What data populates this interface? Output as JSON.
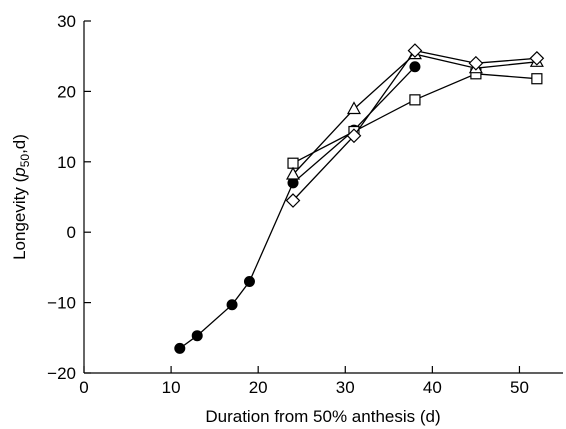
{
  "chart_data": {
    "type": "line",
    "xlabel": "Duration from 50% anthesis (d)",
    "ylabel": "Longevity (",
    "ylabel_symbol": "p",
    "ylabel_subscript": "50",
    "ylabel_suffix": ",d)",
    "xlim": [
      0,
      55
    ],
    "ylim": [
      -20,
      30
    ],
    "xticks": [
      0,
      10,
      20,
      30,
      40,
      50
    ],
    "yticks": [
      -20,
      -10,
      0,
      10,
      20,
      30
    ],
    "xtick_labels": [
      "0",
      "10",
      "20",
      "30",
      "40",
      "50"
    ],
    "ytick_labels": [
      "−20",
      "−10",
      "0",
      "10",
      "20",
      "30"
    ],
    "grid": false,
    "series": [
      {
        "marker": "filled-circle",
        "x": [
          11,
          13,
          17,
          19,
          24,
          31,
          38
        ],
        "y": [
          -16.5,
          -14.7,
          -10.3,
          -7.0,
          7.0,
          14.5,
          23.5
        ]
      },
      {
        "marker": "open-square",
        "x": [
          24,
          31,
          38,
          45,
          52
        ],
        "y": [
          9.8,
          14.3,
          18.8,
          22.5,
          21.8
        ]
      },
      {
        "marker": "open-triangle",
        "x": [
          24,
          31,
          38,
          45,
          52
        ],
        "y": [
          8.2,
          17.5,
          25.3,
          23.3,
          24.2
        ]
      },
      {
        "marker": "open-diamond",
        "x": [
          24,
          31,
          38,
          45,
          52
        ],
        "y": [
          4.5,
          13.7,
          25.8,
          24.0,
          24.7
        ]
      }
    ]
  }
}
